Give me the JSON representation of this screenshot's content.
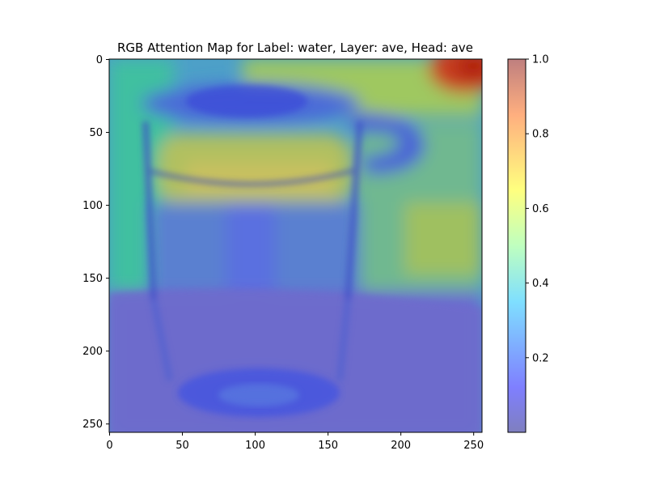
{
  "chart_data": [
    {
      "type": "heatmap",
      "title": "RGB Attention Map for Label: water, Layer: ave, Head: ave",
      "xlabel": "",
      "ylabel": "",
      "xlim": [
        0,
        256
      ],
      "ylim": [
        256,
        0
      ],
      "x_ticks": [
        0,
        50,
        100,
        150,
        200,
        250
      ],
      "y_ticks": [
        0,
        50,
        100,
        150,
        200,
        250
      ],
      "colormap": "jet",
      "overlay_alpha": 0.5,
      "background_image": "glass of water on table",
      "attention_regions": [
        {
          "name": "top-right-corner",
          "x_range": [
            220,
            256
          ],
          "y_range": [
            0,
            20
          ],
          "value": 0.95
        },
        {
          "name": "top-band",
          "x_range": [
            100,
            220
          ],
          "y_range": [
            0,
            30
          ],
          "value": 0.62
        },
        {
          "name": "water-surface",
          "x_range": [
            35,
            160
          ],
          "y_range": [
            45,
            105
          ],
          "value": 0.65
        },
        {
          "name": "right-background",
          "x_range": [
            165,
            256
          ],
          "y_range": [
            60,
            155
          ],
          "value": 0.55
        },
        {
          "name": "left-background",
          "x_range": [
            0,
            35
          ],
          "y_range": [
            0,
            155
          ],
          "value": 0.45
        },
        {
          "name": "glass-stem",
          "x_range": [
            80,
            105
          ],
          "y_range": [
            100,
            260
          ],
          "value": 0.15
        },
        {
          "name": "table",
          "x_range": [
            0,
            256
          ],
          "y_range": [
            160,
            256
          ],
          "value": 0.05
        }
      ],
      "grid": false,
      "legend": "none",
      "colorbar": {
        "ticks": [
          "0.2",
          "0.4",
          "0.6",
          "0.8",
          "1.0"
        ],
        "range": [
          0,
          1
        ]
      }
    }
  ]
}
